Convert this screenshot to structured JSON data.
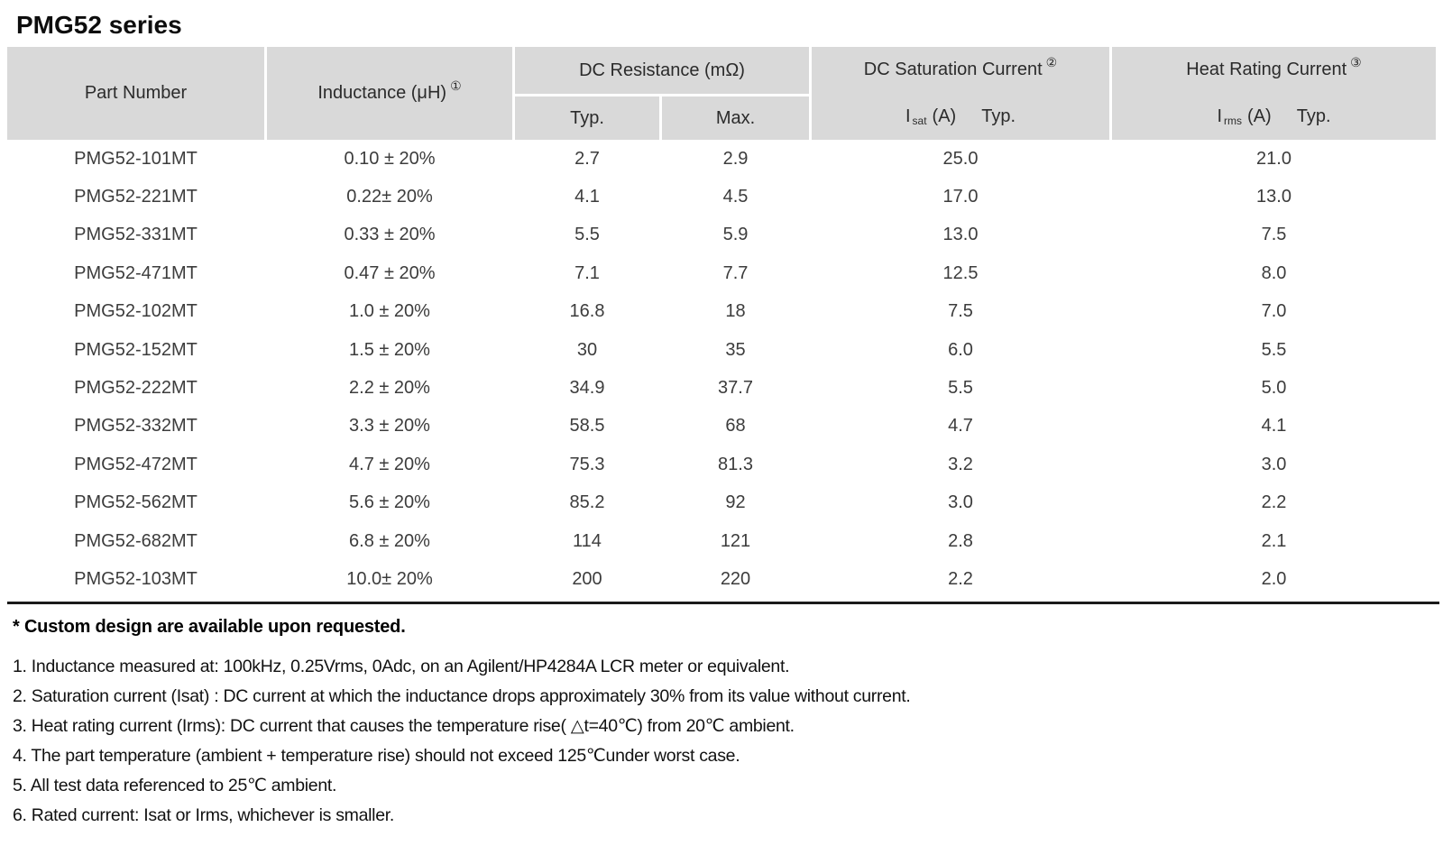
{
  "page": {
    "title": "PMG52 series"
  },
  "table": {
    "columns": {
      "part_number": "Part Number",
      "inductance": "Inductance (μH)",
      "inductance_note": "①",
      "dc_resistance": "DC Resistance (mΩ)",
      "dc_resistance_typ": "Typ.",
      "dc_resistance_max": "Max.",
      "dc_saturation": "DC Saturation Current",
      "dc_saturation_note": "②",
      "isat_prefix": "I",
      "isat_sub": "sat",
      "isat_unit": "(A)",
      "isat_typ": "Typ.",
      "heat_rating": "Heat Rating Current",
      "heat_rating_note": "③",
      "irms_prefix": "I",
      "irms_sub": "rms",
      "irms_unit": "(A)",
      "irms_typ": "Typ."
    },
    "rows": [
      [
        "PMG52-101MT",
        "0.10 ± 20%",
        "2.7",
        "2.9",
        "25.0",
        "21.0"
      ],
      [
        "PMG52-221MT",
        "0.22± 20%",
        "4.1",
        "4.5",
        "17.0",
        "13.0"
      ],
      [
        "PMG52-331MT",
        "0.33 ± 20%",
        "5.5",
        "5.9",
        "13.0",
        "7.5"
      ],
      [
        "PMG52-471MT",
        "0.47 ± 20%",
        "7.1",
        "7.7",
        "12.5",
        "8.0"
      ],
      [
        "PMG52-102MT",
        "1.0 ± 20%",
        "16.8",
        "18",
        "7.5",
        "7.0"
      ],
      [
        "PMG52-152MT",
        "1.5 ± 20%",
        "30",
        "35",
        "6.0",
        "5.5"
      ],
      [
        "PMG52-222MT",
        "2.2 ± 20%",
        "34.9",
        "37.7",
        "5.5",
        "5.0"
      ],
      [
        "PMG52-332MT",
        "3.3 ± 20%",
        "58.5",
        "68",
        "4.7",
        "4.1"
      ],
      [
        "PMG52-472MT",
        "4.7 ± 20%",
        "75.3",
        "81.3",
        "3.2",
        "3.0"
      ],
      [
        "PMG52-562MT",
        "5.6 ± 20%",
        "85.2",
        "92",
        "3.0",
        "2.2"
      ],
      [
        "PMG52-682MT",
        "6.8 ± 20%",
        "114",
        "121",
        "2.8",
        "2.1"
      ],
      [
        "PMG52-103MT",
        "10.0± 20%",
        "200",
        "220",
        "2.2",
        "2.0"
      ]
    ]
  },
  "notes": {
    "custom": "* Custom design are available upon requested.",
    "items": [
      "1. Inductance measured at: 100kHz, 0.25Vrms, 0Adc, on an Agilent/HP4284A LCR meter or equivalent.",
      "2. Saturation current (Isat) : DC current at which the inductance drops approximately 30% from its value without current.",
      "3. Heat rating current (Irms): DC current that causes the temperature rise( △t=40℃) from 20℃ ambient.",
      "4. The part temperature (ambient + temperature rise) should not exceed 125℃under worst case.",
      "5. All test data referenced to 25℃ ambient.",
      "6. Rated current: Isat or Irms, whichever is smaller."
    ]
  },
  "colors": {
    "header_bg": "#d9d9d9",
    "rule": "#1a1a1a",
    "body_text": "#3c3c3c"
  }
}
